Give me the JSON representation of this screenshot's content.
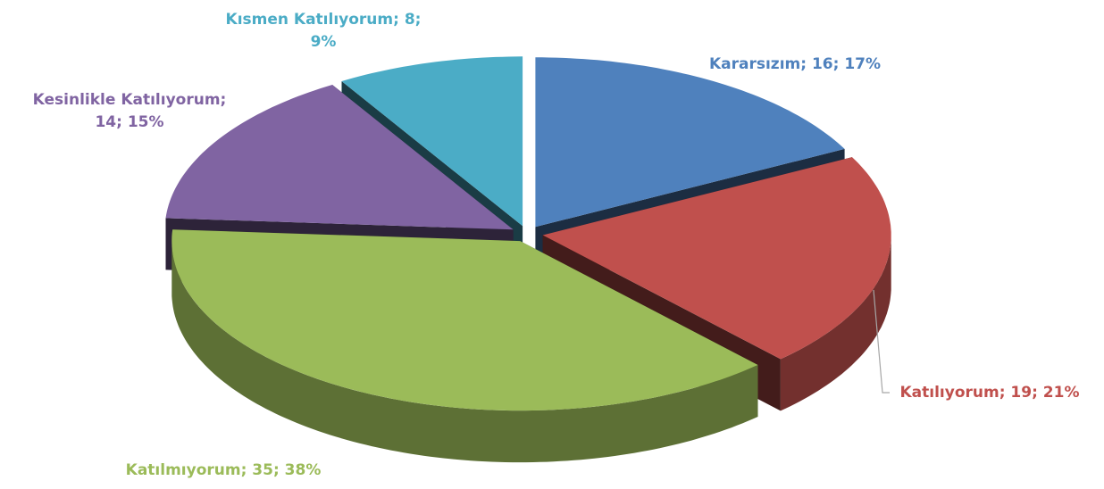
{
  "chart_data": {
    "type": "pie",
    "values": [
      16,
      19,
      35,
      14,
      8
    ],
    "value_labels": [
      [
        "Kararsızım; 16; 17%"
      ],
      [
        "Katılıyorum; 19; 21%"
      ],
      [
        "Katılmıyorum; 35; 38%"
      ],
      [
        "Kesinlikle Katılıyorum;",
        "14; 15%"
      ],
      [
        "Kısmen Katılıyorum; 8;",
        "9%"
      ]
    ],
    "colors": [
      "#4f81bd",
      "#c0504d",
      "#9bbb59",
      "#8064a2",
      "#4bacc6"
    ]
  }
}
